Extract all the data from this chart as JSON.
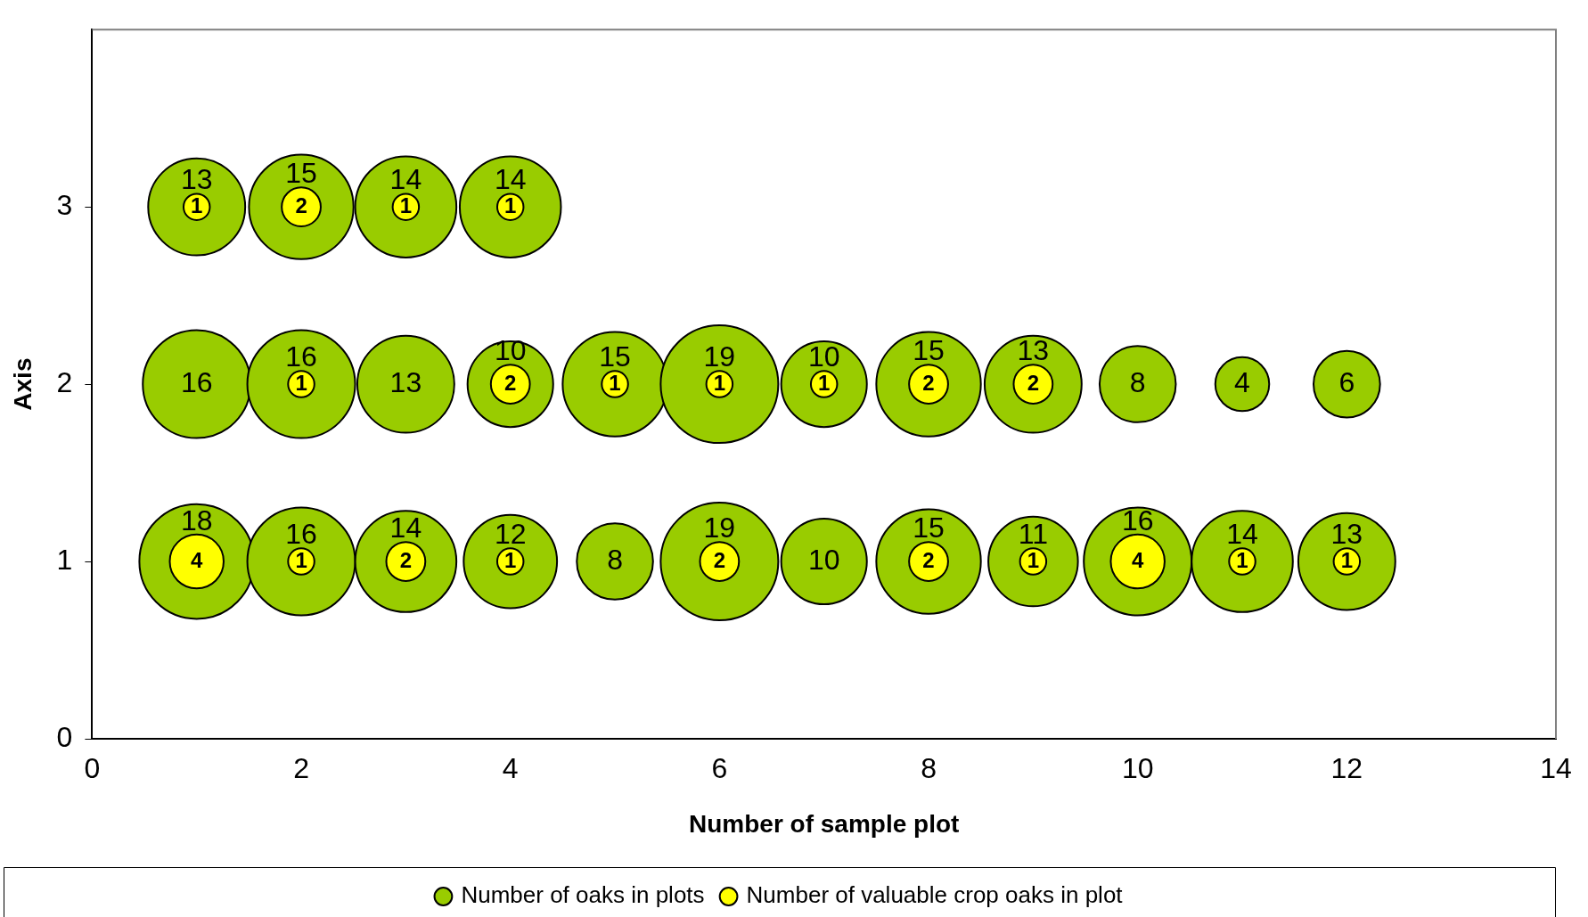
{
  "chart_data": {
    "type": "bubble",
    "xlabel": "Number of sample plot",
    "ylabel": "Axis",
    "xlim": [
      0,
      14
    ],
    "xticks": [
      0,
      2,
      4,
      6,
      8,
      10,
      12,
      14
    ],
    "ylim": [
      0,
      4
    ],
    "yticks": [
      0,
      1,
      2,
      3
    ],
    "grid": false,
    "legend": "bottom",
    "marker": "circle",
    "series": [
      {
        "name": "Number of oaks in plots",
        "color": "#99cc00",
        "x": [
          1,
          2,
          3,
          4,
          1,
          2,
          3,
          4,
          5,
          6,
          7,
          8,
          9,
          10,
          11,
          12,
          1,
          2,
          3,
          4,
          5,
          6,
          7,
          8,
          9,
          10,
          11,
          12
        ],
        "values": [
          3,
          3,
          3,
          3,
          2,
          2,
          2,
          2,
          2,
          2,
          2,
          2,
          2,
          2,
          2,
          2,
          1,
          1,
          1,
          1,
          1,
          1,
          1,
          1,
          1,
          1,
          1,
          1
        ],
        "sizes": [
          0.68,
          0.79,
          0.74,
          0.74,
          0.84,
          0.84,
          0.68,
          0.53,
          0.79,
          1,
          0.53,
          0.79,
          0.68,
          0.42,
          0.21,
          0.32,
          0.95,
          0.84,
          0.74,
          0.63,
          0.42,
          1,
          0.53,
          0.79,
          0.58,
          0.84,
          0.74,
          0.68
        ]
      },
      {
        "name": "Number of valuable crop oaks in plot",
        "color": "#ffff00",
        "x": [
          1,
          2,
          3,
          4,
          2,
          4,
          5,
          6,
          7,
          8,
          9,
          1,
          2,
          3,
          4,
          6,
          8,
          9,
          10,
          11,
          12
        ],
        "values": [
          3,
          3,
          3,
          3,
          2,
          2,
          2,
          2,
          2,
          2,
          2,
          1,
          1,
          1,
          1,
          1,
          1,
          1,
          1,
          1,
          1
        ],
        "sizes": [
          0.05,
          0.11,
          0.05,
          0.05,
          0.05,
          0.11,
          0.05,
          0.05,
          0.05,
          0.11,
          0.11,
          0.21,
          0.05,
          0.11,
          0.05,
          0.11,
          0.11,
          0.05,
          0.21,
          0.05,
          0.05
        ]
      }
    ],
    "annotations": [
      {
        "text": "13",
        "x": 1,
        "y": 3
      },
      {
        "text": "15",
        "x": 2,
        "y": 3
      },
      {
        "text": "14",
        "x": 3,
        "y": 3
      },
      {
        "text": "14",
        "x": 4,
        "y": 3
      },
      {
        "text": "16",
        "x": 1,
        "y": 2
      },
      {
        "text": "16",
        "x": 2,
        "y": 2
      },
      {
        "text": "13",
        "x": 3,
        "y": 2
      },
      {
        "text": "10",
        "x": 4,
        "y": 2
      },
      {
        "text": "15",
        "x": 5,
        "y": 2
      },
      {
        "text": "19",
        "x": 6,
        "y": 2
      },
      {
        "text": "10",
        "x": 7,
        "y": 2
      },
      {
        "text": "15",
        "x": 8,
        "y": 2
      },
      {
        "text": "13",
        "x": 9,
        "y": 2
      },
      {
        "text": "8",
        "x": 10,
        "y": 2
      },
      {
        "text": "4",
        "x": 11,
        "y": 2
      },
      {
        "text": "6",
        "x": 12,
        "y": 2
      },
      {
        "text": "18",
        "x": 1,
        "y": 1
      },
      {
        "text": "16",
        "x": 2,
        "y": 1
      },
      {
        "text": "14",
        "x": 3,
        "y": 1
      },
      {
        "text": "12",
        "x": 4,
        "y": 1
      },
      {
        "text": "8",
        "x": 5,
        "y": 1
      },
      {
        "text": "19",
        "x": 6,
        "y": 1
      },
      {
        "text": "10",
        "x": 7,
        "y": 1
      },
      {
        "text": "15",
        "x": 8,
        "y": 1
      },
      {
        "text": "11",
        "x": 9,
        "y": 1
      },
      {
        "text": "16",
        "x": 10,
        "y": 1
      },
      {
        "text": "14",
        "x": 11,
        "y": 1
      },
      {
        "text": "13",
        "x": 12,
        "y": 1
      },
      {
        "text": "1",
        "x": 1,
        "y": 3
      },
      {
        "text": "2",
        "x": 2,
        "y": 3
      },
      {
        "text": "1",
        "x": 3,
        "y": 3
      },
      {
        "text": "1",
        "x": 4,
        "y": 3
      },
      {
        "text": "1",
        "x": 2,
        "y": 2
      },
      {
        "text": "2",
        "x": 4,
        "y": 2
      },
      {
        "text": "1",
        "x": 5,
        "y": 2
      },
      {
        "text": "1",
        "x": 6,
        "y": 2
      },
      {
        "text": "1",
        "x": 7,
        "y": 2
      },
      {
        "text": "2",
        "x": 8,
        "y": 2
      },
      {
        "text": "2",
        "x": 9,
        "y": 2
      },
      {
        "text": "4",
        "x": 1,
        "y": 1
      },
      {
        "text": "1",
        "x": 2,
        "y": 1
      },
      {
        "text": "2",
        "x": 3,
        "y": 1
      },
      {
        "text": "1",
        "x": 4,
        "y": 1
      },
      {
        "text": "2",
        "x": 6,
        "y": 1
      },
      {
        "text": "2",
        "x": 8,
        "y": 1
      },
      {
        "text": "1",
        "x": 9,
        "y": 1
      },
      {
        "text": "4",
        "x": 10,
        "y": 1
      },
      {
        "text": "1",
        "x": 11,
        "y": 1
      },
      {
        "text": "1",
        "x": 12,
        "y": 1
      }
    ]
  }
}
